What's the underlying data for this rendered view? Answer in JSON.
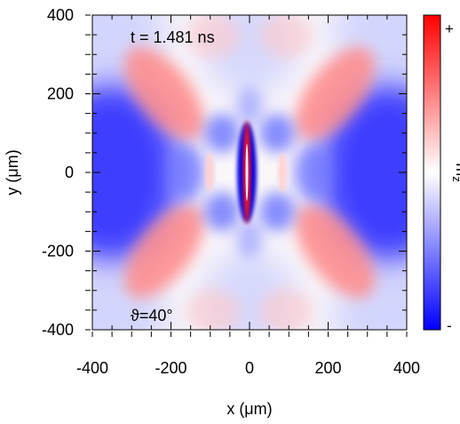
{
  "chart_data": {
    "type": "heatmap",
    "title": "",
    "xlabel": "x (μm)",
    "ylabel": "y (μm)",
    "xlim": [
      -400,
      400
    ],
    "ylim": [
      -400,
      400
    ],
    "xticks": [
      -400,
      -200,
      0,
      200,
      400
    ],
    "yticks": [
      -400,
      -200,
      0,
      200,
      400
    ],
    "xtick_labels": [
      "-400",
      "-200",
      "0",
      "200",
      "400"
    ],
    "ytick_labels": [
      "-400",
      "-200",
      "0",
      "200",
      "400"
    ],
    "annotations": [
      "t = 1.481 ns",
      "ϑ=40°"
    ],
    "colorbar": {
      "label": "m",
      "label_subscript": "z",
      "max_label": "+",
      "min_label": "-",
      "colors": [
        "#0000ff",
        "#ffffff",
        "#ff0000"
      ]
    },
    "pattern_description_values": {
      "left_right_lobes_sign": "negative",
      "diagonal_lobes_sign": "positive",
      "center_strip_sign": "negative_with_positive_core"
    }
  }
}
